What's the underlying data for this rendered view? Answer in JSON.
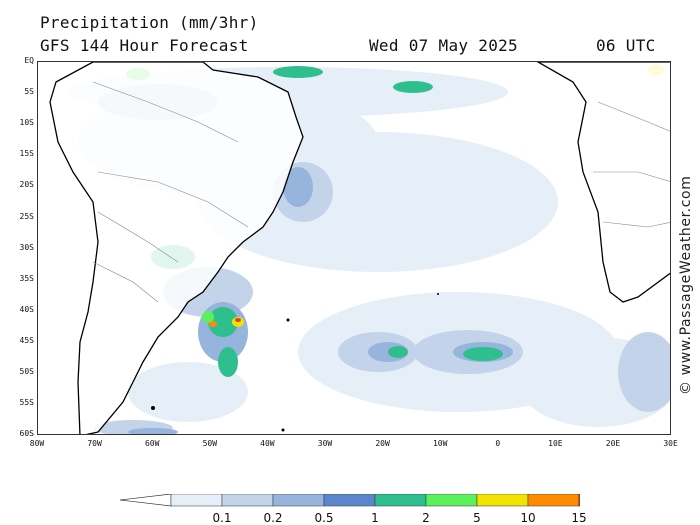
{
  "title": {
    "line1": "Precipitation (mm/3hr)",
    "line2": "GFS 144 Hour Forecast",
    "date": "Wed 07 May 2025",
    "time": "06 UTC"
  },
  "watermark": "© www.PassageWeather.com",
  "lat_labels": [
    "EQ",
    "5S",
    "10S",
    "15S",
    "20S",
    "25S",
    "30S",
    "35S",
    "40S",
    "45S",
    "50S",
    "55S",
    "60S"
  ],
  "lon_labels": [
    "80W",
    "70W",
    "60W",
    "50W",
    "40W",
    "30W",
    "20W",
    "10W",
    "0",
    "10E",
    "20E",
    "30E"
  ],
  "legend": {
    "labels": [
      "0.1",
      "0.2",
      "0.5",
      "1",
      "2",
      "5",
      "10",
      "15"
    ],
    "colors": [
      "#e6eef8",
      "#c3d4ea",
      "#97b4dc",
      "#5b86cc",
      "#2fbf8e",
      "#5cf05c",
      "#f2e400",
      "#ff8c00",
      "#e83a3a"
    ]
  },
  "colors": {
    "land": "#ffffff",
    "coast": "#000000",
    "border": "#888888"
  }
}
